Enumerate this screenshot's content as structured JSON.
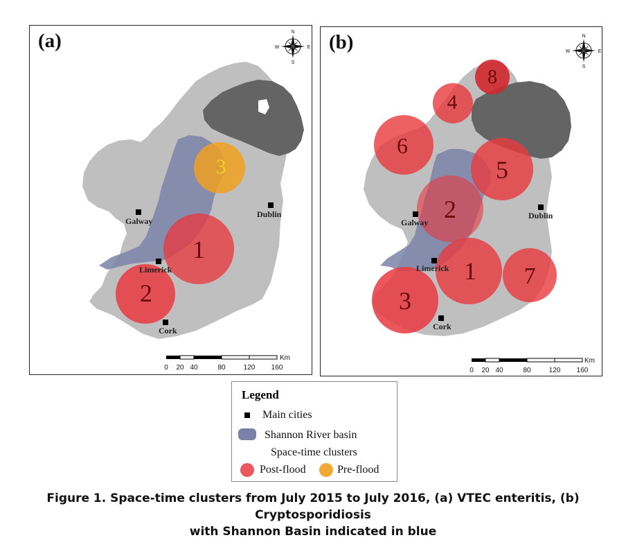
{
  "panels": [
    {
      "label": "(a)",
      "cities": [
        {
          "name": "Galway"
        },
        {
          "name": "Dublin"
        },
        {
          "name": "Limerick"
        },
        {
          "name": "Cork"
        }
      ],
      "clusters": [
        {
          "number": "1",
          "type": "post-flood"
        },
        {
          "number": "2",
          "type": "post-flood"
        },
        {
          "number": "3",
          "type": "pre-flood"
        }
      ],
      "scale_bar": {
        "unit": "Km",
        "ticks": [
          "0",
          "20",
          "40",
          "80",
          "120",
          "160"
        ]
      },
      "compass": {
        "n": "N",
        "s": "S",
        "e": "E",
        "w": "W"
      }
    },
    {
      "label": "(b)",
      "cities": [
        {
          "name": "Galway"
        },
        {
          "name": "Dublin"
        },
        {
          "name": "Limerick"
        },
        {
          "name": "Cork"
        }
      ],
      "clusters": [
        {
          "number": "1",
          "type": "post-flood"
        },
        {
          "number": "2",
          "type": "post-flood"
        },
        {
          "number": "3",
          "type": "post-flood"
        },
        {
          "number": "4",
          "type": "post-flood"
        },
        {
          "number": "5",
          "type": "post-flood"
        },
        {
          "number": "6",
          "type": "post-flood"
        },
        {
          "number": "7",
          "type": "post-flood"
        },
        {
          "number": "8",
          "type": "post-flood"
        }
      ],
      "scale_bar": {
        "unit": "Km",
        "ticks": [
          "0",
          "20",
          "40",
          "80",
          "120",
          "160"
        ]
      },
      "compass": {
        "n": "N",
        "s": "S",
        "e": "E",
        "w": "W"
      }
    }
  ],
  "legend": {
    "title": "Legend",
    "main_cities": "Main cities",
    "shannon": "Shannon River basin",
    "clusters_heading": "Space-time clusters",
    "post_flood": "Post-flood",
    "pre_flood": "Pre-flood"
  },
  "colors": {
    "land": "#bfbfbf",
    "northern_ireland": "#646464",
    "shannon_basin": "#7b82a8",
    "post_flood": "#e8393f",
    "pre_flood": "#f0a020",
    "cluster_number": "#6a0a0a",
    "pre_flood_number": "#f5d020"
  },
  "caption": {
    "line1": "Figure 1. Space-time clusters from July 2015 to July 2016, (a) VTEC enteritis, (b) Cryptosporidiosis",
    "line2": "with Shannon Basin indicated in blue"
  }
}
